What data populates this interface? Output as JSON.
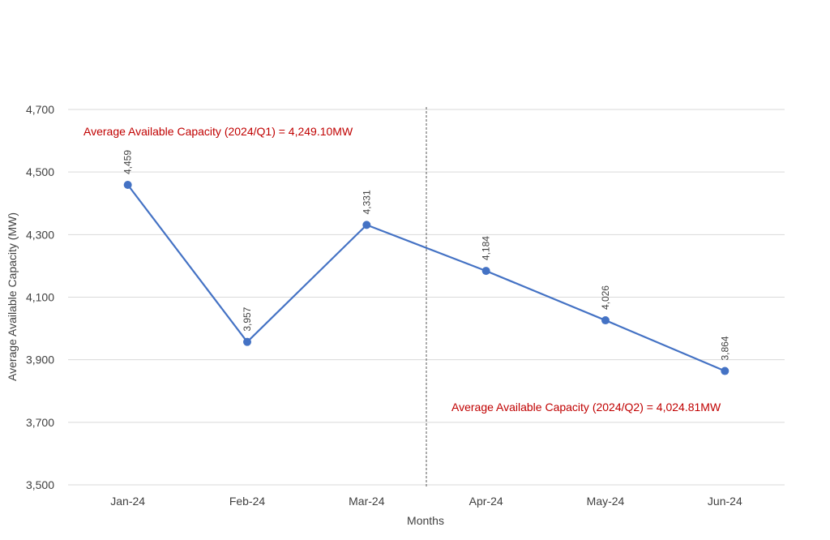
{
  "chart_data": {
    "type": "line",
    "categories": [
      "Jan-24",
      "Feb-24",
      "Mar-24",
      "Apr-24",
      "May-24",
      "Jun-24"
    ],
    "series": [
      {
        "values": [
          4459,
          3957,
          4331,
          4184,
          4026,
          3864
        ]
      }
    ],
    "data_labels": [
      "4,459",
      "3,957",
      "4,331",
      "4,184",
      "4,026",
      "3,864"
    ],
    "xlabel": "Months",
    "ylabel": "Average Available Capacity (MW)",
    "ylim": [
      3500,
      4700
    ],
    "yticks": [
      3500,
      3700,
      3900,
      4100,
      4300,
      4500,
      4700
    ],
    "ytick_labels": [
      "3,500",
      "3,700",
      "3,900",
      "4,100",
      "4,300",
      "4,500",
      "4,700"
    ],
    "grid": "horizontal",
    "divider_after_category": "Mar-24",
    "annotations": [
      "Average Available Capacity (2024/Q1) = 4,249.10MW",
      "Average Available Capacity (2024/Q2) = 4,024.81MW"
    ],
    "colors": {
      "line": "#4472c4",
      "annotation": "#c00000",
      "grid": "#d9d9d9",
      "text": "#404040"
    }
  }
}
